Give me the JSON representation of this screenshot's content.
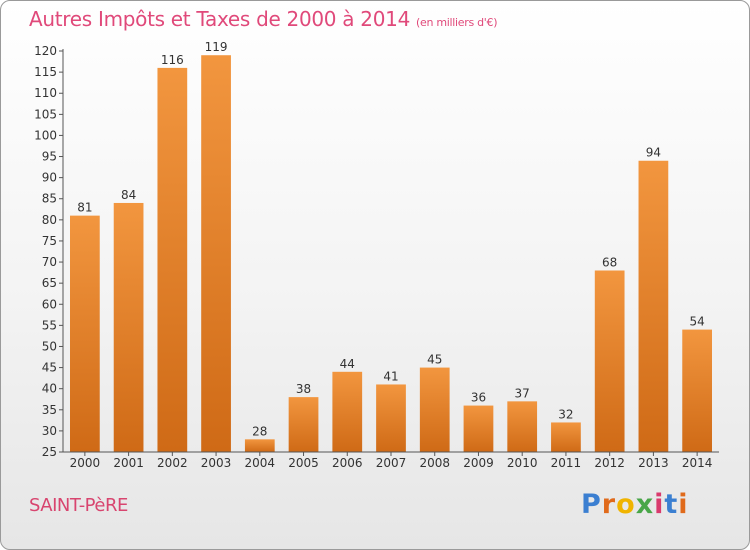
{
  "chart_data": {
    "type": "bar",
    "title": "Autres Impôts et Taxes de 2000 à 2014",
    "subtitle": "(en milliers d'€)",
    "categories": [
      "2000",
      "2001",
      "2002",
      "2003",
      "2004",
      "2005",
      "2006",
      "2007",
      "2008",
      "2009",
      "2010",
      "2011",
      "2012",
      "2013",
      "2014"
    ],
    "values": [
      81,
      84,
      116,
      119,
      28,
      38,
      44,
      41,
      45,
      36,
      37,
      32,
      68,
      94,
      54
    ],
    "ylim": [
      25,
      120
    ],
    "yticks": [
      "25",
      "30",
      "35",
      "40",
      "45",
      "50",
      "55",
      "60",
      "65",
      "70",
      "75",
      "80",
      "85",
      "90",
      "95",
      "100",
      "105",
      "110",
      "115",
      "120"
    ],
    "xlabel": "",
    "ylabel": "",
    "grid": false,
    "bar_color": "#f2963f",
    "bar_color_dark": "#cf6a16"
  },
  "footer": {
    "commune": "SAINT-PèRE",
    "logo_letters": [
      "P",
      "r",
      "o",
      "x",
      "i",
      "t",
      "i"
    ]
  }
}
